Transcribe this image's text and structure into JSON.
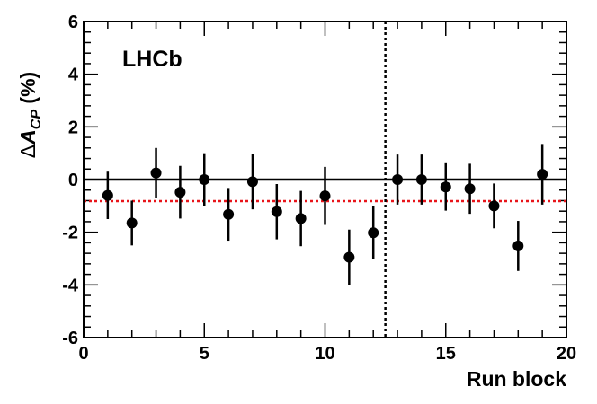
{
  "chart_data": {
    "type": "scatter",
    "annotation": "LHCb",
    "xlabel": "Run block",
    "ylabel": {
      "prefix": "Δ",
      "main": "A",
      "subscript": "CP",
      "suffix": " (%)"
    },
    "xlim": [
      0,
      20
    ],
    "ylim": [
      -6,
      6
    ],
    "x_ticks": [
      0,
      5,
      10,
      15,
      20
    ],
    "y_ticks": [
      -6,
      -4,
      -2,
      0,
      2,
      4,
      6
    ],
    "x_tick_labels": [
      "0",
      "5",
      "10",
      "15",
      "20"
    ],
    "y_tick_labels": [
      "-6",
      "-4",
      "-2",
      "0",
      "2",
      "4",
      "6"
    ],
    "grid": false,
    "reference_lines": [
      {
        "orientation": "horizontal",
        "value": 0,
        "style": "solid",
        "color": "#000000"
      },
      {
        "orientation": "horizontal",
        "value": -0.82,
        "style": "dotted",
        "color": "#e8141a"
      },
      {
        "orientation": "vertical",
        "value": 12.5,
        "style": "dotted",
        "color": "#000000"
      }
    ],
    "points": [
      {
        "x": 1,
        "y": -0.6,
        "err": 0.9
      },
      {
        "x": 2,
        "y": -1.65,
        "err": 0.85
      },
      {
        "x": 3,
        "y": 0.25,
        "err": 0.95
      },
      {
        "x": 4,
        "y": -0.48,
        "err": 1.0
      },
      {
        "x": 5,
        "y": 0.0,
        "err": 1.0
      },
      {
        "x": 6,
        "y": -1.32,
        "err": 1.0
      },
      {
        "x": 7,
        "y": -0.08,
        "err": 1.05
      },
      {
        "x": 8,
        "y": -1.22,
        "err": 1.05
      },
      {
        "x": 9,
        "y": -1.48,
        "err": 1.05
      },
      {
        "x": 10,
        "y": -0.62,
        "err": 1.1
      },
      {
        "x": 11,
        "y": -2.95,
        "err": 1.05
      },
      {
        "x": 12,
        "y": -2.02,
        "err": 1.0
      },
      {
        "x": 13,
        "y": 0.0,
        "err": 0.95
      },
      {
        "x": 14,
        "y": 0.0,
        "err": 0.95
      },
      {
        "x": 15,
        "y": -0.28,
        "err": 0.9
      },
      {
        "x": 16,
        "y": -0.35,
        "err": 0.95
      },
      {
        "x": 17,
        "y": -1.0,
        "err": 0.85
      },
      {
        "x": 18,
        "y": -2.52,
        "err": 0.95
      },
      {
        "x": 19,
        "y": 0.2,
        "err": 1.15
      }
    ],
    "marker_color": "#000000"
  }
}
